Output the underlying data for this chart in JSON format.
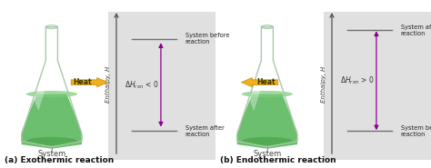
{
  "flask_fill_color": "#5db860",
  "flask_fill_light": "#8dd88a",
  "flask_outline_color": "#b0c8b0",
  "flask_bg": "#e8f0e8",
  "panel_bg": "#e0e0e0",
  "heat_arrow_color": "#f0b020",
  "heat_arrow_edge": "#c88800",
  "heat_text_color": "#333300",
  "level_line_color": "#707070",
  "delta_arrow_color": "#8b008b",
  "axis_color": "#505050",
  "text_color": "#222222",
  "label_color": "#111111",
  "system_text_color": "#444444",
  "label_a": "(a) Exothermic reaction",
  "label_b": "(b) Endothermic reaction",
  "enthalpy_label": "Enthalpy, H",
  "system_label": "System",
  "heat_label": "Heat",
  "sys_before": "System before\nreaction",
  "sys_after": "System after\nreaction",
  "exo_delta": "Δ$H_{rxn}$ < 0",
  "endo_delta": "Δ$H_{rxn}$ > 0",
  "fig_width": 4.74,
  "fig_height": 1.85,
  "dpi": 100
}
